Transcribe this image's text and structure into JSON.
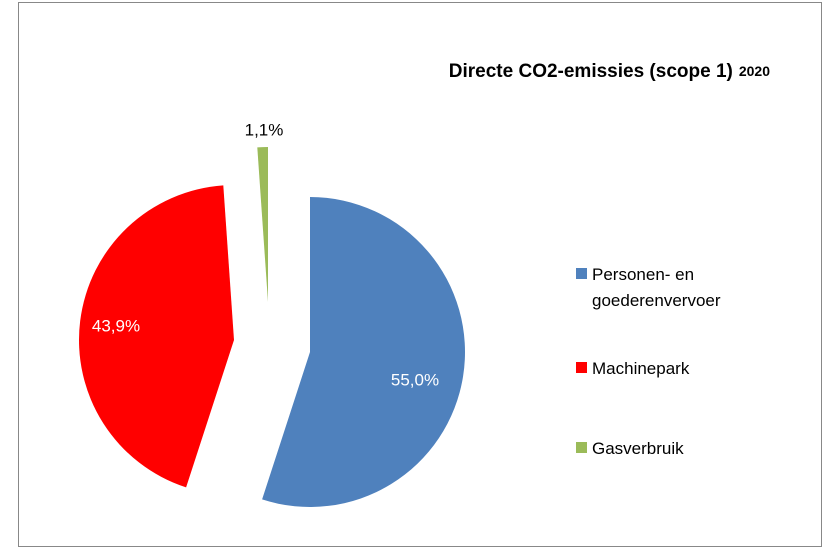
{
  "chart_data": {
    "type": "pie",
    "title": "Directe CO2-emissies (scope 1)",
    "subtitle": "2020",
    "categories": [
      "Personen- en goederenvervoer",
      "Machinepark",
      "Gasverbruik"
    ],
    "values": [
      55.0,
      43.9,
      1.1
    ],
    "value_labels": [
      "55,0%",
      "43,9%",
      "1,1%"
    ],
    "colors": [
      "#4f81bd",
      "#ff0000",
      "#9bbb59"
    ],
    "legend": "right"
  }
}
